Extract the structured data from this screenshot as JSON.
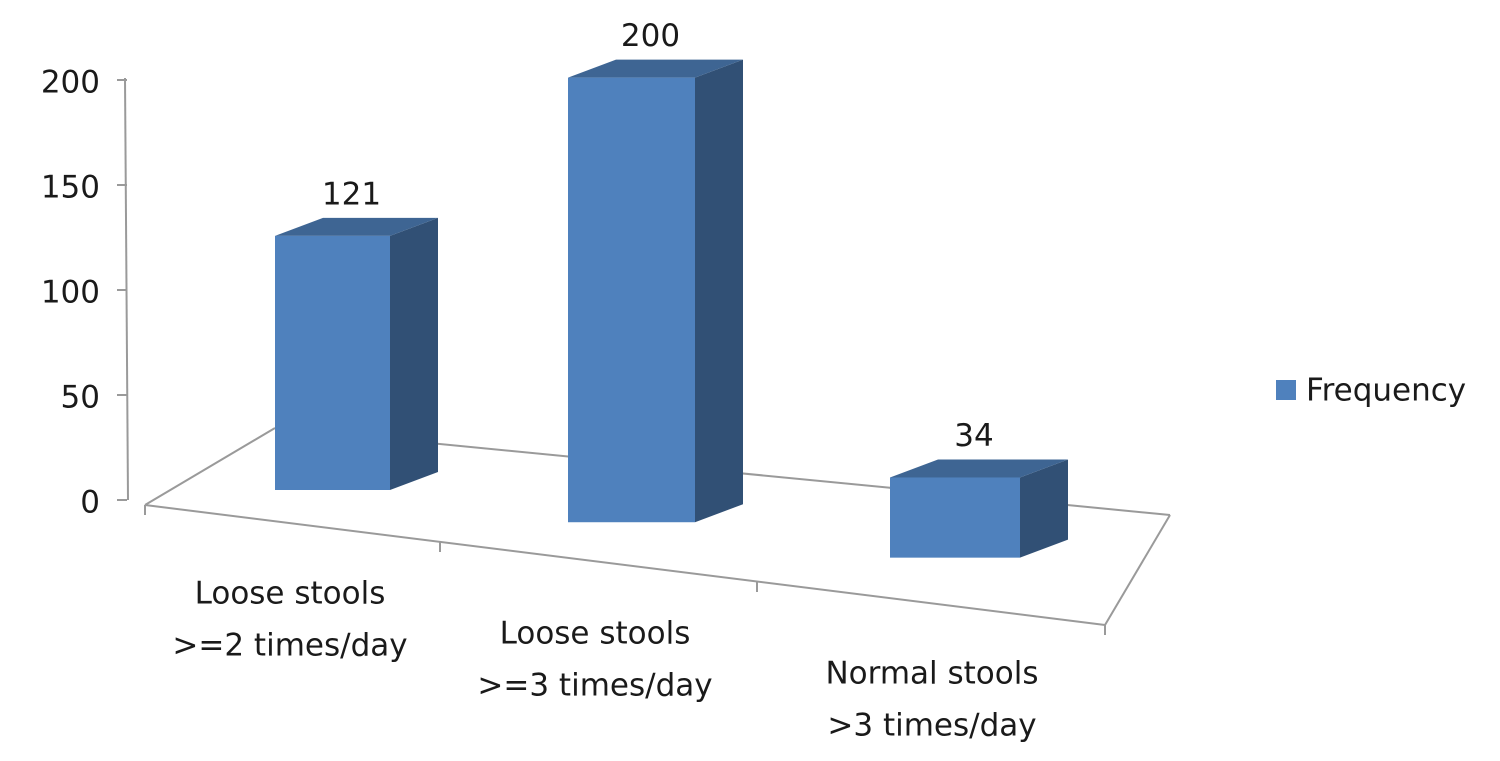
{
  "chart_data": {
    "type": "bar3d",
    "categories": [
      [
        "Loose stools",
        ">=2 times/day"
      ],
      [
        "Loose stools",
        ">=3 times/day"
      ],
      [
        "Normal stools",
        ">3 times/day"
      ]
    ],
    "series": [
      {
        "name": "Frequency",
        "color": "#4f81bd",
        "values": [
          121,
          200,
          34
        ]
      }
    ],
    "ylim": [
      0,
      200
    ],
    "yticks": [
      0,
      50,
      100,
      150,
      200
    ],
    "grid": false,
    "legend": "right"
  }
}
